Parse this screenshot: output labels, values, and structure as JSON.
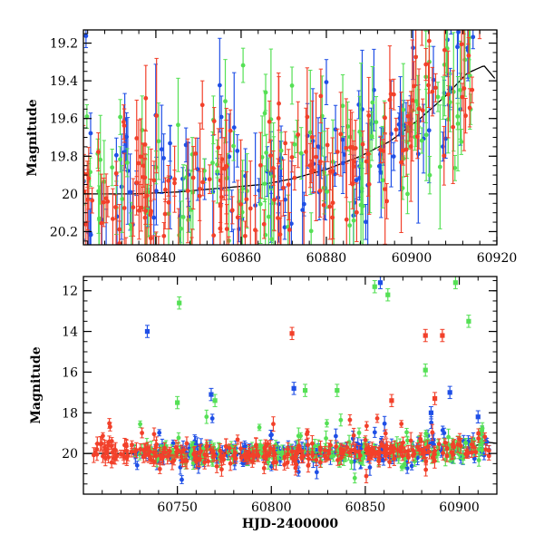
{
  "colors": {
    "blue": "#1f4fe6",
    "green": "#55e055",
    "red": "#f2402a",
    "model": "#000000"
  },
  "chart_data": [
    {
      "type": "scatter",
      "panel": "top",
      "xlabel": "",
      "ylabel": "Magnitude",
      "xlim": [
        60823,
        60920
      ],
      "ylim": [
        20.27,
        19.13
      ],
      "y_inverted": true,
      "x_ticks": [
        60840,
        60860,
        60880,
        60900,
        60920
      ],
      "x_tick_labels": [
        "60840",
        "60860",
        "60880",
        "60900",
        "60920"
      ],
      "y_ticks": [
        19.2,
        19.4,
        19.6,
        19.8,
        20,
        20.2
      ],
      "y_tick_labels": [
        "19.2",
        "19.4",
        "19.6",
        "19.8",
        "20",
        "20.2"
      ],
      "model_curve": {
        "x": [
          60823,
          60835,
          60845,
          60855,
          60865,
          60872,
          60880,
          60888,
          60895,
          60902,
          60908,
          60913,
          60917,
          60920
        ],
        "y": [
          20.0,
          20.0,
          19.99,
          19.97,
          19.95,
          19.92,
          19.87,
          19.8,
          19.72,
          19.6,
          19.48,
          19.36,
          19.32,
          19.4
        ]
      },
      "series": [
        {
          "name": "",
          "color_key": "blue",
          "x_range": [
            60823,
            60916
          ],
          "seed": 11,
          "n": 130
        },
        {
          "name": "",
          "color_key": "green",
          "x_range": [
            60823,
            60916
          ],
          "seed": 23,
          "n": 130
        },
        {
          "name": "",
          "color_key": "red",
          "x_range": [
            60823,
            60916
          ],
          "seed": 37,
          "n": 190
        }
      ]
    },
    {
      "type": "scatter",
      "panel": "bottom",
      "xlabel": "HJD-2400000",
      "ylabel": "Magnitude",
      "xlim": [
        60700,
        60920
      ],
      "ylim": [
        22.0,
        11.3
      ],
      "y_inverted": true,
      "x_ticks": [
        60750,
        60800,
        60850,
        60900
      ],
      "x_tick_labels": [
        "60750",
        "60800",
        "60850",
        "60900"
      ],
      "y_ticks": [
        12,
        14,
        16,
        18,
        20
      ],
      "y_tick_labels": [
        "12",
        "14",
        "16",
        "18",
        "20"
      ],
      "model_curve": {
        "x": [
          60700,
          60760,
          60820,
          60860,
          60890,
          60905,
          60915,
          60920
        ],
        "y": [
          20.0,
          20.0,
          20.0,
          19.95,
          19.85,
          19.7,
          19.45,
          19.5
        ]
      },
      "outliers": [
        {
          "color_key": "blue",
          "x": 60734,
          "y": 14.0
        },
        {
          "color_key": "blue",
          "x": 60768,
          "y": 17.1
        },
        {
          "color_key": "blue",
          "x": 60812,
          "y": 16.8
        },
        {
          "color_key": "blue",
          "x": 60858,
          "y": 11.6
        },
        {
          "color_key": "blue",
          "x": 60885,
          "y": 18.0
        },
        {
          "color_key": "blue",
          "x": 60910,
          "y": 18.2
        },
        {
          "color_key": "blue",
          "x": 60895,
          "y": 17.0
        },
        {
          "color_key": "green",
          "x": 60751,
          "y": 12.6
        },
        {
          "color_key": "green",
          "x": 60750,
          "y": 17.5
        },
        {
          "color_key": "green",
          "x": 60770,
          "y": 17.4
        },
        {
          "color_key": "green",
          "x": 60835,
          "y": 16.9
        },
        {
          "color_key": "green",
          "x": 60855,
          "y": 11.8
        },
        {
          "color_key": "green",
          "x": 60862,
          "y": 12.2
        },
        {
          "color_key": "green",
          "x": 60882,
          "y": 15.9
        },
        {
          "color_key": "green",
          "x": 60898,
          "y": 11.6
        },
        {
          "color_key": "green",
          "x": 60905,
          "y": 13.5
        },
        {
          "color_key": "green",
          "x": 60818,
          "y": 16.9
        },
        {
          "color_key": "red",
          "x": 60811,
          "y": 14.1
        },
        {
          "color_key": "red",
          "x": 60864,
          "y": 17.4
        },
        {
          "color_key": "red",
          "x": 60882,
          "y": 14.2
        },
        {
          "color_key": "red",
          "x": 60891,
          "y": 14.2
        },
        {
          "color_key": "red",
          "x": 60887,
          "y": 17.3
        }
      ],
      "series": [
        {
          "name": "",
          "color_key": "blue",
          "x_range": [
            60727,
            60916
          ],
          "seed": 101,
          "n": 220
        },
        {
          "name": "",
          "color_key": "green",
          "x_range": [
            60727,
            60916
          ],
          "seed": 202,
          "n": 220
        },
        {
          "name": "",
          "color_key": "red",
          "x_range": [
            60705,
            60916
          ],
          "seed": 303,
          "n": 300
        }
      ]
    }
  ]
}
